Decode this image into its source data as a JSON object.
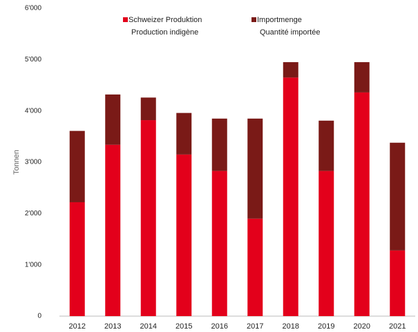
{
  "chart_data": {
    "type": "stacked_bar",
    "y_label": "Tonnen",
    "categories": [
      "2012",
      "2013",
      "2014",
      "2015",
      "2016",
      "2017",
      "2018",
      "2019",
      "2020",
      "2021"
    ],
    "series": [
      {
        "name": "Schweizer Produktion",
        "name_line2": "Production indigène",
        "color": "#e3001b",
        "values": [
          2220,
          3340,
          3820,
          3150,
          2830,
          1900,
          4650,
          2830,
          4360,
          1280
        ]
      },
      {
        "name": "Importmenge",
        "name_line2": "Quantité importée",
        "color": "#7a1a17",
        "values": [
          1390,
          980,
          440,
          810,
          1020,
          1950,
          300,
          980,
          590,
          2100
        ]
      }
    ],
    "ylim": [
      0,
      6000
    ],
    "yticks": [
      0,
      {
        "value": 1000,
        "label": "1'000"
      },
      {
        "value": 2000,
        "label": "2'000"
      },
      {
        "value": 3000,
        "label": "3'000"
      },
      {
        "value": 4000,
        "label": "4'000"
      },
      {
        "value": 5000,
        "label": "5'000"
      },
      {
        "value": 6000,
        "label": "6'000"
      }
    ],
    "grid": false
  }
}
